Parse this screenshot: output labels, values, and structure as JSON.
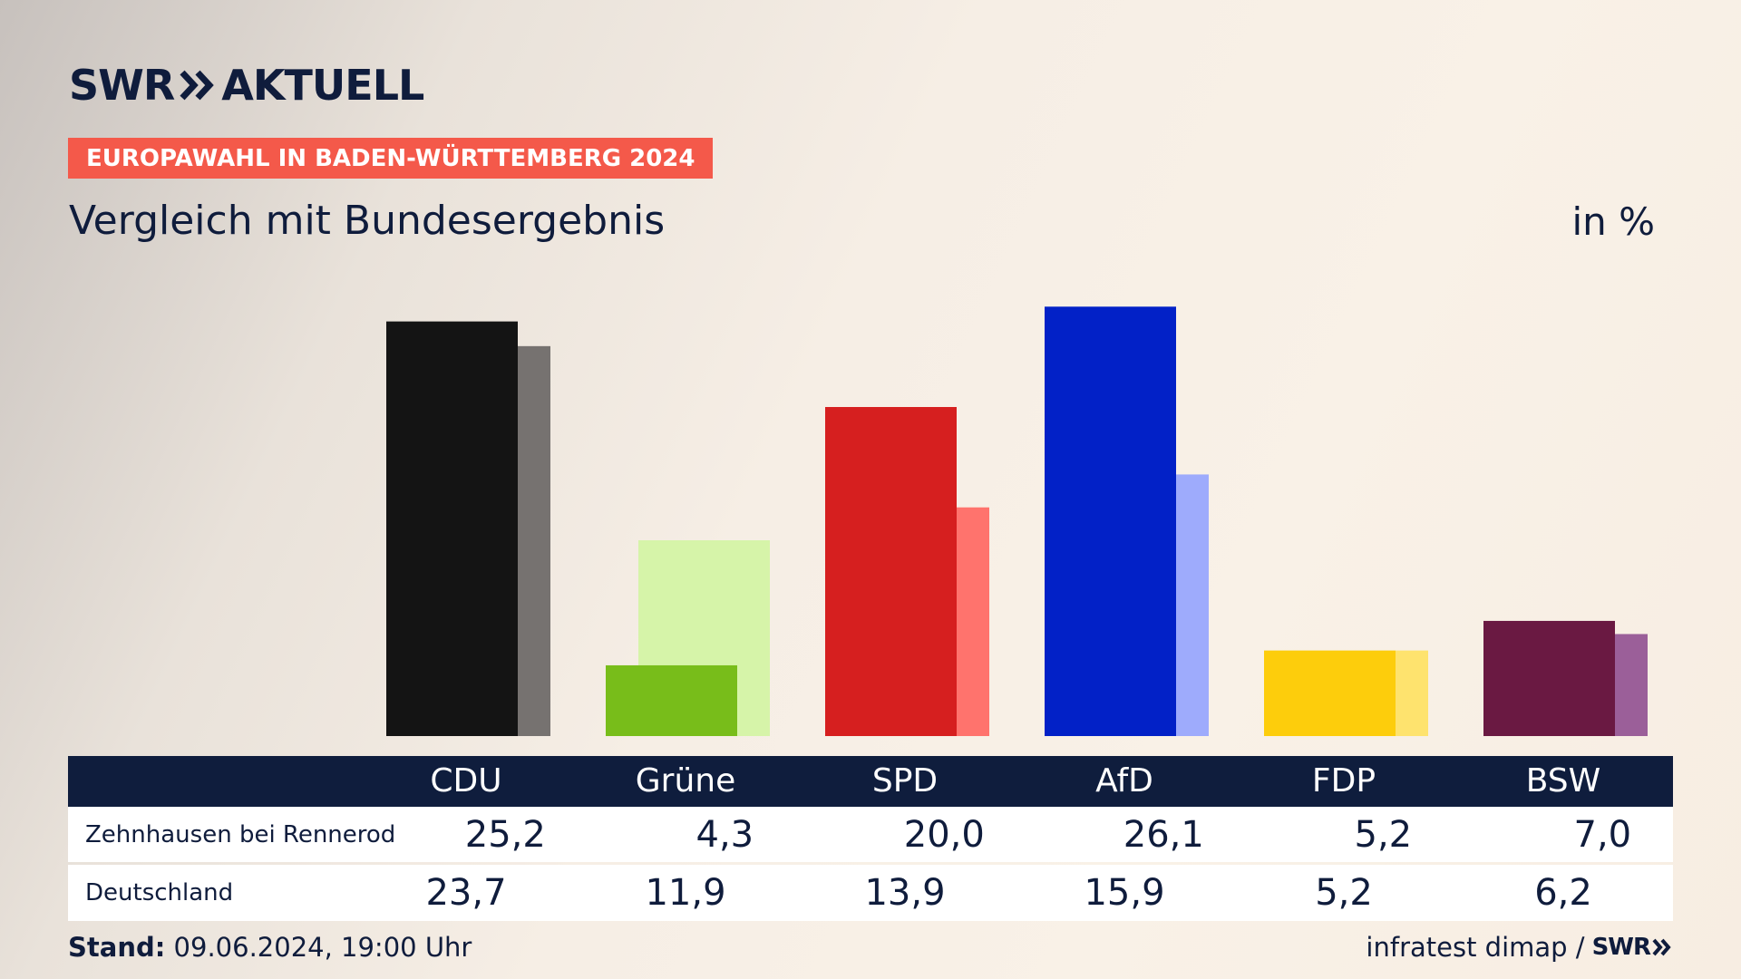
{
  "header": {
    "logo_text": "SWR",
    "logo_suffix": "AKTUELL",
    "badge": "EUROPAWAHL IN BADEN-WÜRTTEMBERG 2024",
    "subtitle": "Vergleich mit Bundesergebnis",
    "unit": "in %"
  },
  "colors": {
    "navy": "#0f1c3c",
    "badge": "#f4594a"
  },
  "chart_data": {
    "type": "bar",
    "categories": [
      "CDU",
      "Grüne",
      "SPD",
      "AfD",
      "FDP",
      "BSW"
    ],
    "series": [
      {
        "name": "Zehnhausen bei Rennerod",
        "values": [
          25.2,
          4.3,
          20.0,
          26.1,
          5.2,
          7.0
        ]
      },
      {
        "name": "Deutschland",
        "values": [
          23.7,
          11.9,
          13.9,
          15.9,
          5.2,
          6.2
        ]
      }
    ],
    "colors_primary": [
      "#141414",
      "#78bd1a",
      "#d61f1f",
      "#0221c7",
      "#fdcd0c",
      "#6a1942"
    ],
    "colors_secondary": [
      "#767270",
      "#d6f4a9",
      "#ff736d",
      "#9eabfc",
      "#fee36e",
      "#9b5f99"
    ],
    "ylim": [
      0,
      28
    ]
  },
  "table": {
    "rows": [
      {
        "label": "Zehnhausen bei Rennerod",
        "values": [
          "25,2",
          "4,3",
          "20,0",
          "26,1",
          "5,2",
          "7,0"
        ]
      },
      {
        "label": "Deutschland",
        "values": [
          "23,7",
          "11,9",
          "13,9",
          "15,9",
          "5,2",
          "6,2"
        ]
      }
    ]
  },
  "footer": {
    "stand_label": "Stand:",
    "stand_value": "09.06.2024, 19:00 Uhr",
    "source": "infratest dimap /",
    "source_logo": "SWR"
  }
}
